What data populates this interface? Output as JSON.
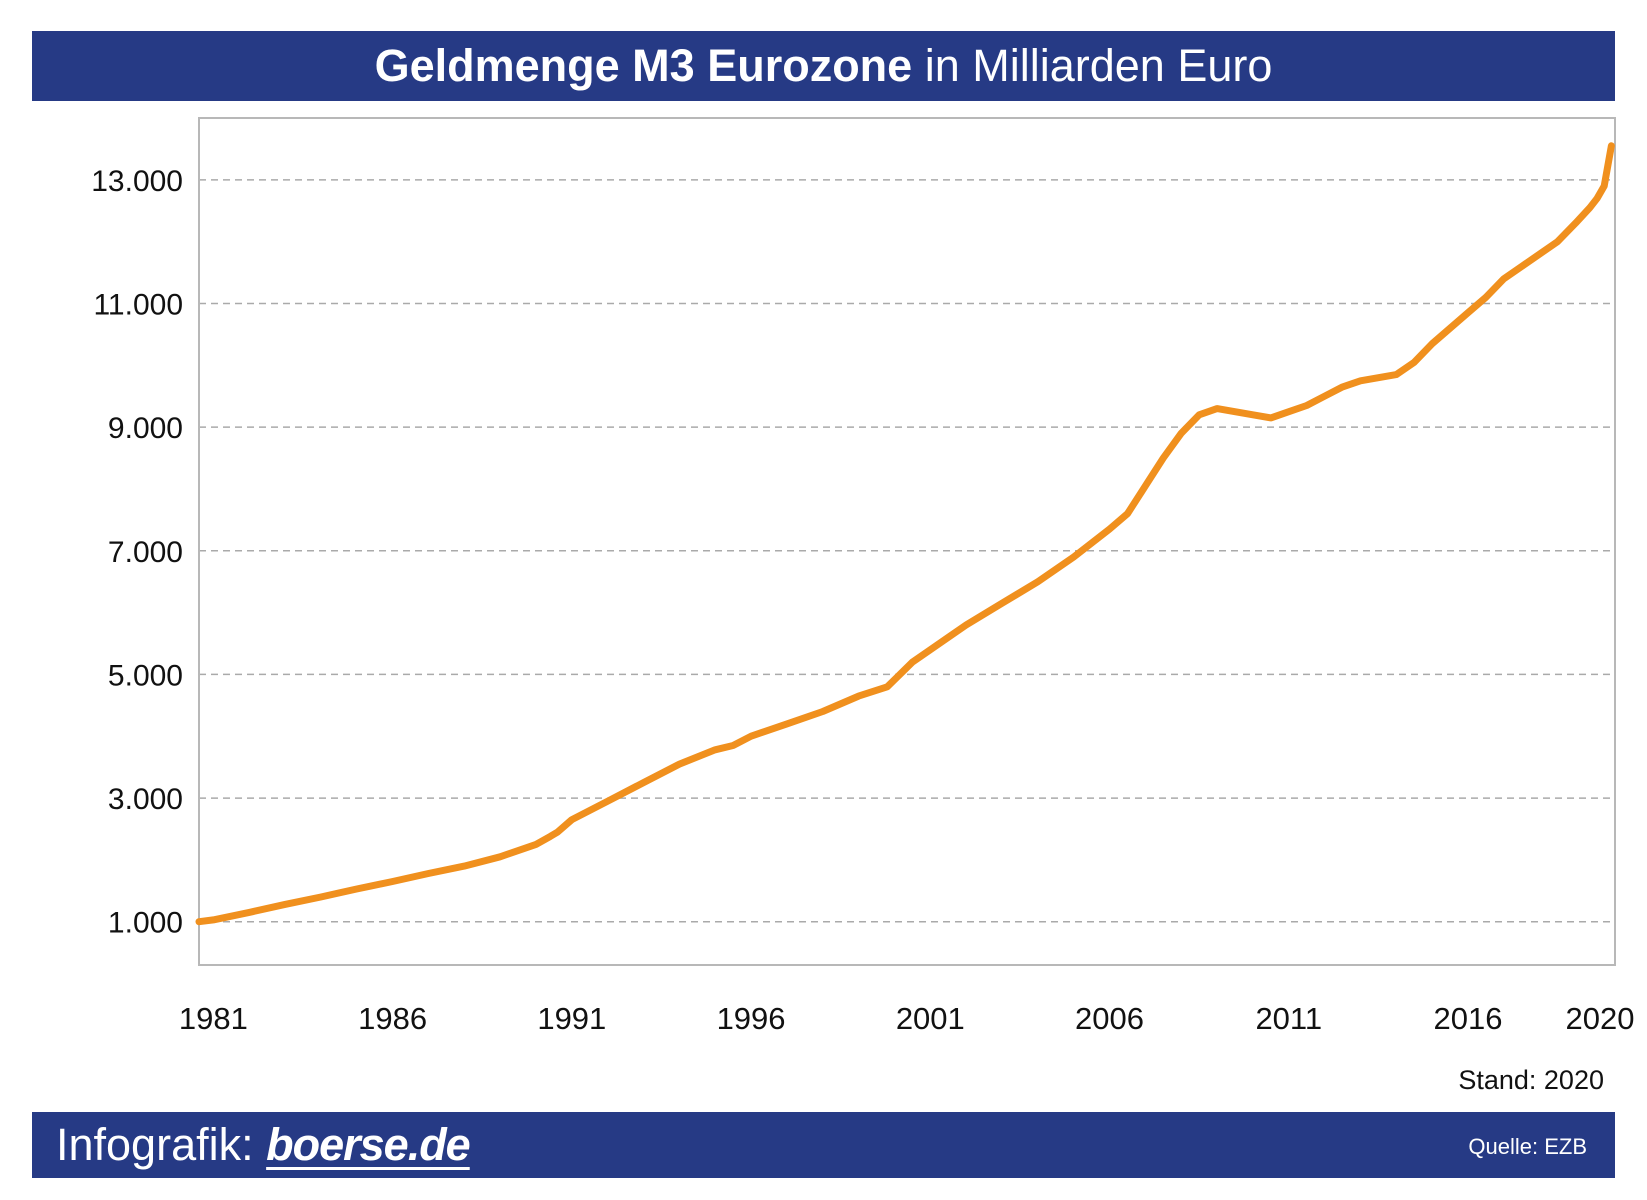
{
  "title": {
    "bold": "Geldmenge M3 Eurozone",
    "regular": "in Milliarden Euro"
  },
  "footer": {
    "infografik": "Infografik:",
    "brand": "boerse.de",
    "source": "Quelle: EZB"
  },
  "stand": "Stand: 2020",
  "colors": {
    "banner": "#263a85",
    "line": "#f0901e",
    "grid": "#aaaaaa"
  },
  "chart_data": {
    "type": "line",
    "x_ticks": [
      1981,
      1986,
      1991,
      1996,
      2001,
      2006,
      2011,
      2016,
      2020
    ],
    "x_tick_labels": [
      "1981",
      "1986",
      "1991",
      "1996",
      "2001",
      "2006",
      "2011",
      "2016",
      "2020"
    ],
    "y_ticks": [
      1000,
      3000,
      5000,
      7000,
      9000,
      11000,
      13000
    ],
    "y_tick_labels": [
      "1.000",
      "3.000",
      "5.000",
      "7.000",
      "9.000",
      "11.000",
      "13.000"
    ],
    "xlim": [
      1980.6,
      2020.1
    ],
    "ylim": [
      300,
      14000
    ],
    "grid": "horizontal dashed",
    "series": [
      {
        "x": [
          1980.6,
          1981.0,
          1982.0,
          1983.0,
          1984.0,
          1985.0,
          1986.0,
          1987.0,
          1988.0,
          1989.0,
          1990.0,
          1990.4,
          1990.6,
          1991.0,
          1992.0,
          1993.0,
          1994.0,
          1995.0,
          1995.5,
          1996.0,
          1997.0,
          1998.0,
          1999.0,
          1999.8,
          2000.5,
          2001.0,
          2002.0,
          2003.0,
          2004.0,
          2005.0,
          2006.0,
          2006.5,
          2007.0,
          2007.5,
          2008.0,
          2008.5,
          2009.0,
          2009.5,
          2010.0,
          2010.5,
          2011.0,
          2011.5,
          2012.0,
          2012.5,
          2013.0,
          2013.5,
          2014.0,
          2014.5,
          2015.0,
          2015.5,
          2016.0,
          2016.5,
          2017.0,
          2017.5,
          2018.0,
          2018.5,
          2019.0,
          2019.4,
          2019.6,
          2019.8,
          2020.0
        ],
        "y": [
          1000,
          1030,
          1150,
          1280,
          1400,
          1530,
          1650,
          1780,
          1900,
          2050,
          2250,
          2380,
          2450,
          2650,
          2950,
          3250,
          3550,
          3780,
          3850,
          4000,
          4200,
          4400,
          4650,
          4800,
          5200,
          5400,
          5800,
          6150,
          6500,
          6900,
          7350,
          7600,
          8050,
          8500,
          8900,
          9200,
          9300,
          9250,
          9200,
          9150,
          9250,
          9350,
          9500,
          9650,
          9750,
          9800,
          9850,
          10050,
          10350,
          10600,
          10850,
          11100,
          11400,
          11600,
          11800,
          12000,
          12300,
          12550,
          12700,
          12900,
          13550
        ]
      }
    ]
  }
}
